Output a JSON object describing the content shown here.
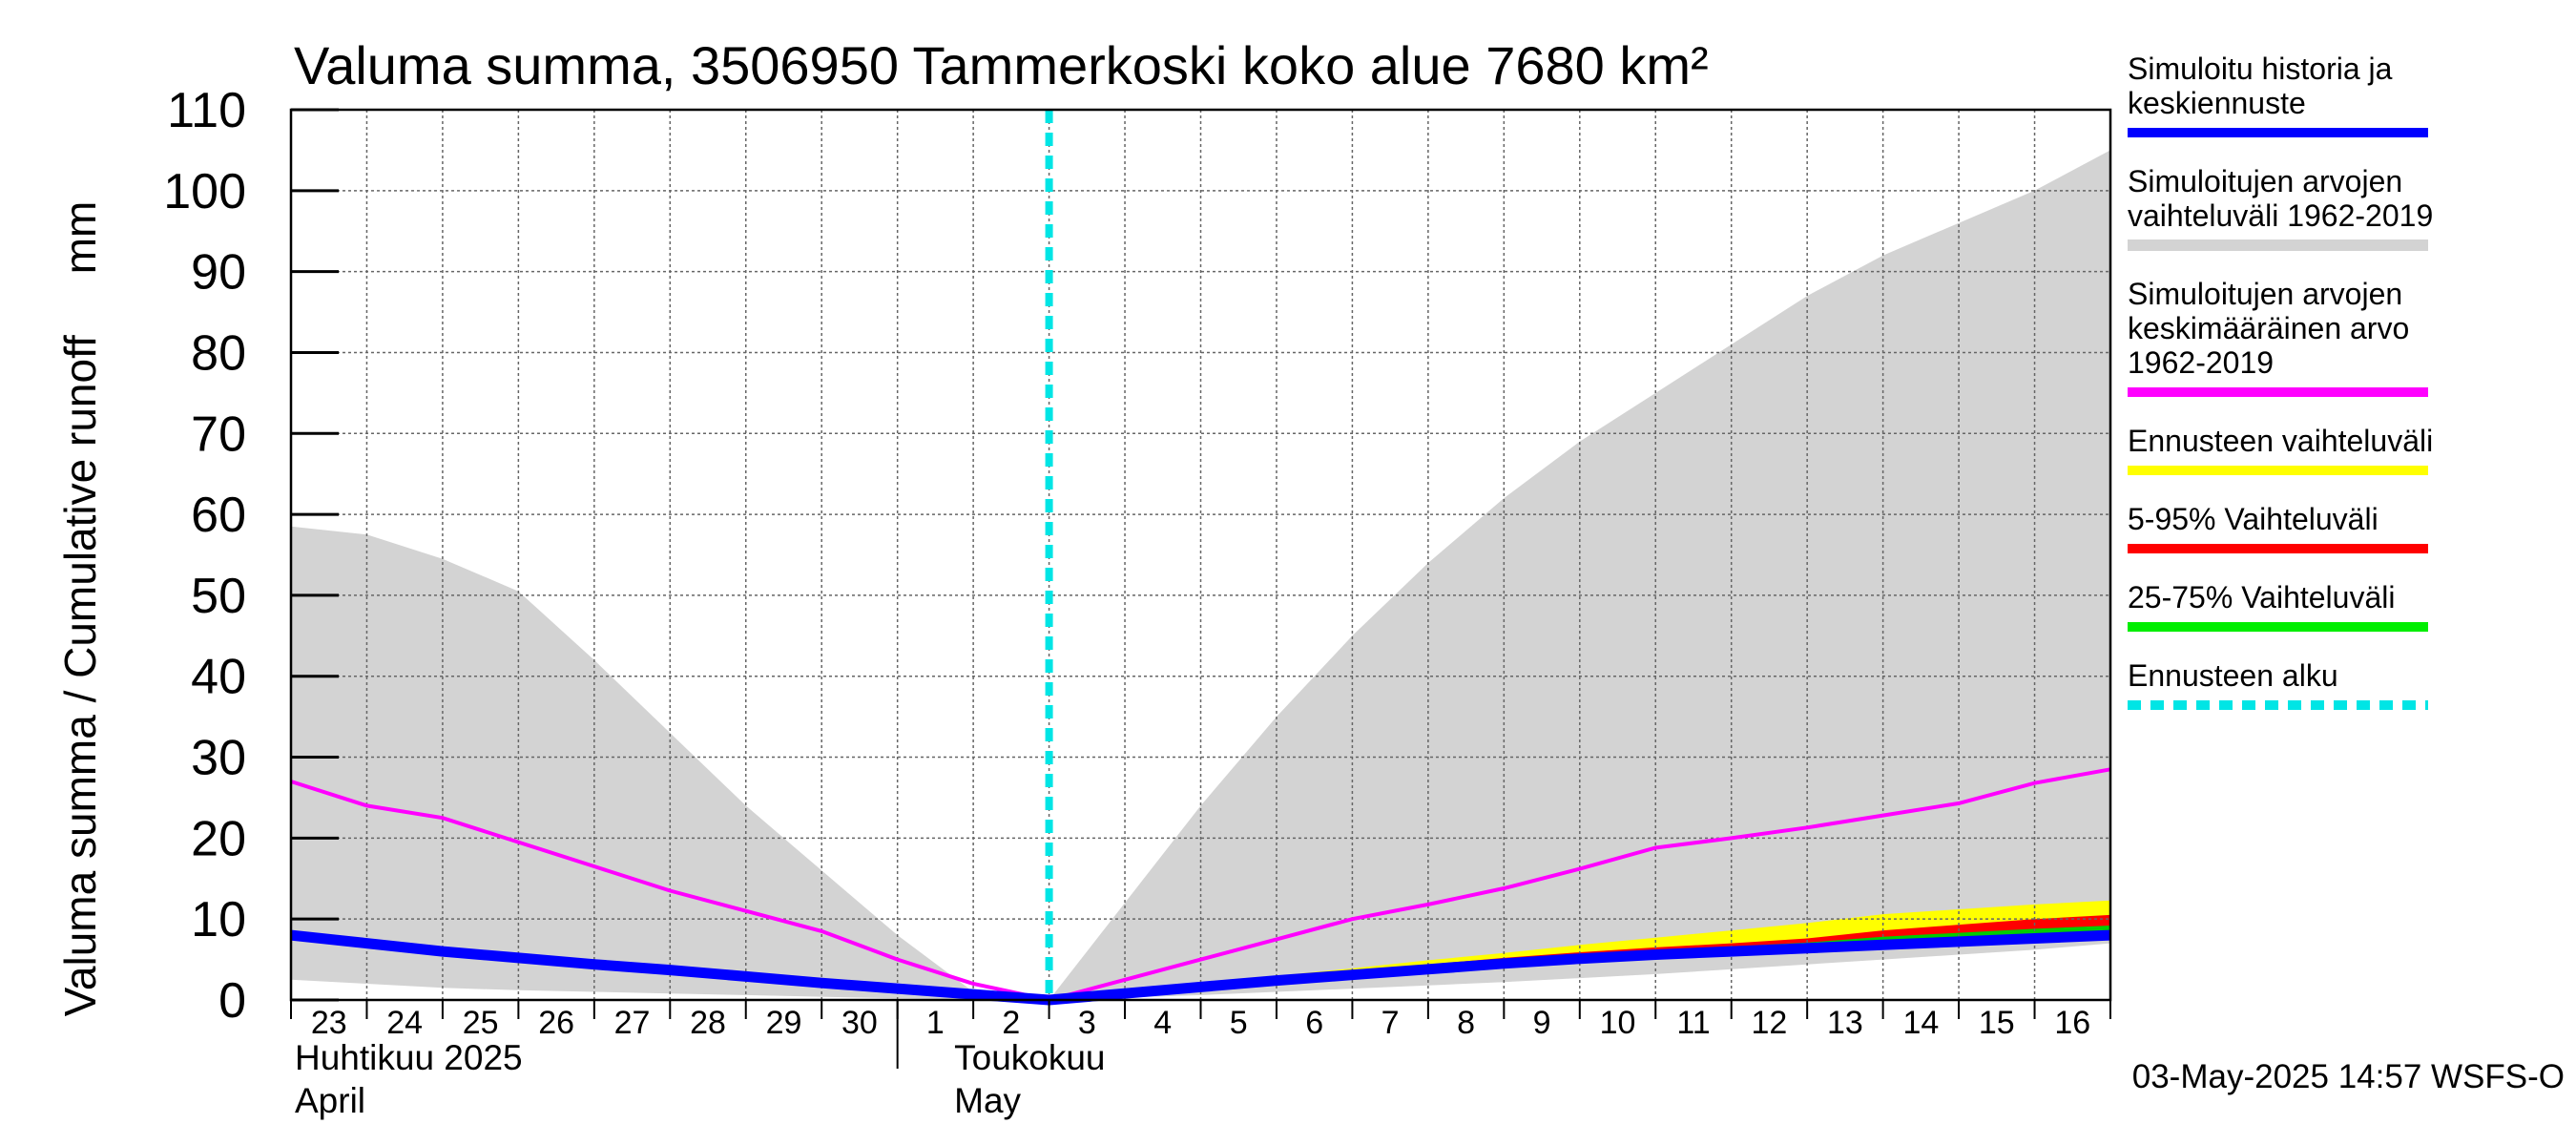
{
  "chart_data": {
    "type": "area",
    "title": "Valuma summa, 3506950 Tammerkoski koko alue 7680 km²",
    "ylabel": "Valuma summa / Cumulative runoff     mm",
    "ylim": [
      0,
      110
    ],
    "yticks": [
      0,
      10,
      20,
      30,
      40,
      50,
      60,
      70,
      80,
      90,
      100,
      110
    ],
    "x_day_labels": [
      "23",
      "24",
      "25",
      "26",
      "27",
      "28",
      "29",
      "30",
      "1",
      "2",
      "3",
      "4",
      "5",
      "6",
      "7",
      "8",
      "9",
      "10",
      "11",
      "12",
      "13",
      "14",
      "15",
      "16"
    ],
    "month_labels": [
      {
        "fi": "Huhtikuu  2025",
        "en": "April"
      },
      {
        "fi": "Toukokuu",
        "en": "May"
      }
    ],
    "grid": true,
    "legend_placement": "right",
    "forecast_start": "2025-05-03",
    "timestamp": "03-May-2025 14:57 WSFS-O",
    "x_dates": [
      "2025-04-23",
      "2025-04-24",
      "2025-04-25",
      "2025-04-26",
      "2025-04-27",
      "2025-04-28",
      "2025-04-29",
      "2025-04-30",
      "2025-05-01",
      "2025-05-02",
      "2025-05-03",
      "2025-05-04",
      "2025-05-05",
      "2025-05-06",
      "2025-05-07",
      "2025-05-08",
      "2025-05-09",
      "2025-05-10",
      "2025-05-11",
      "2025-05-12",
      "2025-05-13",
      "2025-05-14",
      "2025-05-15",
      "2025-05-16",
      "2025-05-17"
    ],
    "series": [
      {
        "name": "Simuloitujen arvojen vaihteluväli 1962-2019",
        "color": "#d3d3d3",
        "upper": [
          58.5,
          57.5,
          54.5,
          50.5,
          42,
          33,
          24,
          16,
          8,
          1,
          0,
          12,
          24,
          35,
          45,
          54,
          62,
          69,
          75,
          81,
          87,
          92,
          96,
          100,
          105
        ],
        "lower": [
          2.5,
          2.0,
          1.5,
          1.2,
          1.0,
          0.8,
          0.6,
          0.4,
          0.2,
          0.1,
          0,
          0.3,
          0.6,
          1.0,
          1.4,
          1.8,
          2.2,
          2.7,
          3.2,
          3.8,
          4.4,
          5.0,
          5.6,
          6.2,
          7.0
        ]
      },
      {
        "name": "Ennusteen vaihteluväli",
        "color": "#ffff00",
        "upper": [
          null,
          null,
          null,
          null,
          null,
          null,
          null,
          null,
          null,
          null,
          0,
          1.0,
          2.0,
          3.0,
          3.9,
          4.9,
          5.8,
          6.8,
          7.7,
          8.6,
          9.5,
          10.6,
          11.2,
          11.8,
          12.3
        ],
        "lower": [
          null,
          null,
          null,
          null,
          null,
          null,
          null,
          null,
          null,
          null,
          0,
          0.8,
          1.6,
          2.4,
          3.1,
          3.8,
          4.5,
          5.1,
          5.6,
          6.0,
          6.4,
          6.8,
          7.2,
          7.6,
          8.0
        ]
      },
      {
        "name": "5-95% Vaihteluväli",
        "color": "#ff0000",
        "upper": [
          null,
          null,
          null,
          null,
          null,
          null,
          null,
          null,
          null,
          null,
          0,
          1.0,
          1.9,
          2.8,
          3.6,
          4.4,
          5.2,
          5.9,
          6.5,
          7.0,
          7.6,
          8.6,
          9.3,
          10.0,
          10.5
        ],
        "lower": [
          null,
          null,
          null,
          null,
          null,
          null,
          null,
          null,
          null,
          null,
          0,
          0.8,
          1.6,
          2.4,
          3.1,
          3.8,
          4.5,
          5.1,
          5.6,
          6.0,
          6.4,
          6.8,
          7.2,
          7.6,
          8.0
        ]
      },
      {
        "name": "25-75% Vaihteluväli",
        "color": "#00cc00",
        "upper": [
          null,
          null,
          null,
          null,
          null,
          null,
          null,
          null,
          null,
          null,
          0,
          0.9,
          1.8,
          2.6,
          3.4,
          4.1,
          4.8,
          5.5,
          6.1,
          6.6,
          7.1,
          7.8,
          8.3,
          8.8,
          9.2
        ],
        "lower": [
          null,
          null,
          null,
          null,
          null,
          null,
          null,
          null,
          null,
          null,
          0,
          0.8,
          1.6,
          2.4,
          3.1,
          3.8,
          4.5,
          5.1,
          5.6,
          6.0,
          6.4,
          6.8,
          7.2,
          7.6,
          8.0
        ]
      },
      {
        "name": "Simuloitujen arvojen keskimääräinen arvo 1962-2019",
        "color": "#ff00ff",
        "values": [
          27,
          24,
          22.5,
          19.5,
          16.5,
          13.5,
          11,
          8.5,
          5,
          2,
          0,
          2.5,
          5,
          7.5,
          10,
          11.8,
          13.8,
          16.2,
          18.8,
          20,
          21.3,
          22.8,
          24.3,
          26.8,
          28.5
        ]
      },
      {
        "name": "Simuloitu historia ja keskiennuste",
        "color": "#0000ff",
        "values": [
          8,
          7,
          6,
          5.2,
          4.4,
          3.7,
          2.9,
          2.1,
          1.4,
          0.7,
          0,
          0.8,
          1.6,
          2.4,
          3.1,
          3.8,
          4.5,
          5.1,
          5.6,
          6.0,
          6.4,
          6.8,
          7.2,
          7.6,
          8.0
        ]
      }
    ],
    "legend": [
      {
        "lines": [
          "Simuloitu historia ja",
          "keskiennuste"
        ],
        "color": "#0000ff",
        "style": "solid"
      },
      {
        "lines": [
          "Simuloitujen arvojen",
          "vaihteluväli 1962-2019"
        ],
        "color": "#d3d3d3",
        "style": "solid"
      },
      {
        "lines": [
          "Simuloitujen arvojen",
          "keskimääräinen arvo",
          "   1962-2019"
        ],
        "color": "#ff00ff",
        "style": "solid"
      },
      {
        "lines": [
          "Ennusteen vaihteluväli"
        ],
        "color": "#ffff00",
        "style": "solid"
      },
      {
        "lines": [
          "5-95% Vaihteluväli"
        ],
        "color": "#ff0000",
        "style": "solid"
      },
      {
        "lines": [
          "25-75% Vaihteluväli"
        ],
        "color": "#00ee00",
        "style": "solid"
      },
      {
        "lines": [
          "Ennusteen alku"
        ],
        "color": "#00e5e5",
        "style": "dashed"
      }
    ]
  }
}
